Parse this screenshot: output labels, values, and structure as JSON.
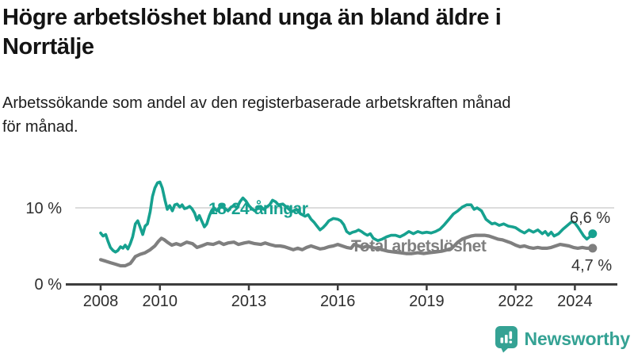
{
  "header": {
    "title": "Högre arbetslöshet bland unga än bland äldre i Norrtälje",
    "title_lines": [
      "Högre arbetslöshet bland unga än bland äldre i",
      "Norrtälje"
    ],
    "subtitle": "Arbetssökande som andel av den registerbaserade arbetskraften månad för månad.",
    "subtitle_lines": [
      "Arbetssökande som andel av den registerbaserade arbetskraften månad",
      "för månad."
    ]
  },
  "colors": {
    "youth_line": "#16a18f",
    "total_line": "#7f7f7f",
    "axis": "#3d3d3d",
    "grid": "#d0d0d0",
    "tick_text": "#2e2e2e",
    "brand_teal": "#35a294"
  },
  "chart_data": {
    "type": "line",
    "unit": "%",
    "x_axis": {
      "ticks": [
        2008,
        2010,
        2013,
        2016,
        2019,
        2022,
        2024
      ],
      "range": [
        2008,
        2024.7
      ]
    },
    "y_axis": {
      "ticks": [
        {
          "value": 0,
          "label": "0 %"
        },
        {
          "value": 10,
          "label": "10 %"
        }
      ],
      "range": [
        0,
        14.8
      ]
    },
    "grid": "y-10-only",
    "series": [
      {
        "name": "18-24-åringar",
        "color": "#16a18f",
        "end_value": 6.6,
        "end_label": "6,6 %",
        "points": [
          [
            2008.0,
            6.7
          ],
          [
            2008.08,
            6.3
          ],
          [
            2008.17,
            6.5
          ],
          [
            2008.25,
            5.6
          ],
          [
            2008.33,
            4.8
          ],
          [
            2008.42,
            4.4
          ],
          [
            2008.5,
            4.2
          ],
          [
            2008.58,
            4.4
          ],
          [
            2008.67,
            4.9
          ],
          [
            2008.75,
            4.7
          ],
          [
            2008.83,
            5.1
          ],
          [
            2008.92,
            4.6
          ],
          [
            2009.0,
            5.3
          ],
          [
            2009.08,
            6.2
          ],
          [
            2009.17,
            7.9
          ],
          [
            2009.25,
            8.3
          ],
          [
            2009.33,
            7.5
          ],
          [
            2009.42,
            6.5
          ],
          [
            2009.5,
            7.6
          ],
          [
            2009.58,
            7.9
          ],
          [
            2009.67,
            9.5
          ],
          [
            2009.75,
            11.5
          ],
          [
            2009.83,
            12.6
          ],
          [
            2009.92,
            13.3
          ],
          [
            2010.0,
            13.4
          ],
          [
            2010.08,
            12.6
          ],
          [
            2010.17,
            11.0
          ],
          [
            2010.25,
            9.8
          ],
          [
            2010.33,
            10.3
          ],
          [
            2010.42,
            9.6
          ],
          [
            2010.5,
            10.4
          ],
          [
            2010.58,
            10.5
          ],
          [
            2010.67,
            10.1
          ],
          [
            2010.75,
            10.4
          ],
          [
            2010.83,
            9.9
          ],
          [
            2010.92,
            10.0
          ],
          [
            2011.0,
            10.2
          ],
          [
            2011.08,
            9.9
          ],
          [
            2011.17,
            9.3
          ],
          [
            2011.25,
            8.4
          ],
          [
            2011.33,
            9.0
          ],
          [
            2011.42,
            8.2
          ],
          [
            2011.5,
            7.5
          ],
          [
            2011.58,
            7.9
          ],
          [
            2011.67,
            9.0
          ],
          [
            2011.75,
            9.7
          ],
          [
            2011.83,
            10.0
          ],
          [
            2011.92,
            9.6
          ],
          [
            2012.0,
            10.0
          ],
          [
            2012.1,
            10.4
          ],
          [
            2012.2,
            9.9
          ],
          [
            2012.3,
            9.6
          ],
          [
            2012.4,
            10.1
          ],
          [
            2012.5,
            10.3
          ],
          [
            2012.6,
            10.0
          ],
          [
            2012.7,
            10.8
          ],
          [
            2012.8,
            11.3
          ],
          [
            2012.9,
            10.9
          ],
          [
            2013.0,
            10.3
          ],
          [
            2013.1,
            9.9
          ],
          [
            2013.2,
            9.6
          ],
          [
            2013.3,
            10.0
          ],
          [
            2013.4,
            10.2
          ],
          [
            2013.5,
            9.8
          ],
          [
            2013.6,
            10.1
          ],
          [
            2013.7,
            10.4
          ],
          [
            2013.8,
            11.0
          ],
          [
            2013.9,
            10.8
          ],
          [
            2014.0,
            10.4
          ],
          [
            2014.15,
            10.5
          ],
          [
            2014.3,
            10.0
          ],
          [
            2014.45,
            9.5
          ],
          [
            2014.6,
            9.8
          ],
          [
            2014.75,
            9.2
          ],
          [
            2014.9,
            8.9
          ],
          [
            2015.0,
            9.1
          ],
          [
            2015.1,
            8.5
          ],
          [
            2015.2,
            8.1
          ],
          [
            2015.3,
            7.6
          ],
          [
            2015.4,
            7.1
          ],
          [
            2015.5,
            7.4
          ],
          [
            2015.6,
            7.8
          ],
          [
            2015.7,
            8.3
          ],
          [
            2015.85,
            8.6
          ],
          [
            2016.0,
            8.5
          ],
          [
            2016.1,
            8.3
          ],
          [
            2016.2,
            7.8
          ],
          [
            2016.3,
            6.9
          ],
          [
            2016.4,
            6.6
          ],
          [
            2016.5,
            6.8
          ],
          [
            2016.6,
            6.9
          ],
          [
            2016.7,
            7.1
          ],
          [
            2016.8,
            6.9
          ],
          [
            2016.9,
            6.6
          ],
          [
            2017.0,
            6.4
          ],
          [
            2017.1,
            6.6
          ],
          [
            2017.2,
            6.0
          ],
          [
            2017.35,
            5.7
          ],
          [
            2017.5,
            5.9
          ],
          [
            2017.65,
            6.2
          ],
          [
            2017.8,
            6.4
          ],
          [
            2017.95,
            6.4
          ],
          [
            2018.1,
            6.2
          ],
          [
            2018.25,
            6.5
          ],
          [
            2018.4,
            6.9
          ],
          [
            2018.55,
            6.6
          ],
          [
            2018.7,
            6.9
          ],
          [
            2018.85,
            6.7
          ],
          [
            2019.0,
            6.8
          ],
          [
            2019.15,
            6.7
          ],
          [
            2019.3,
            6.9
          ],
          [
            2019.45,
            7.2
          ],
          [
            2019.6,
            7.8
          ],
          [
            2019.75,
            8.5
          ],
          [
            2019.9,
            9.2
          ],
          [
            2020.05,
            9.6
          ],
          [
            2020.2,
            10.1
          ],
          [
            2020.35,
            10.4
          ],
          [
            2020.5,
            10.4
          ],
          [
            2020.6,
            9.8
          ],
          [
            2020.7,
            10.0
          ],
          [
            2020.85,
            9.6
          ],
          [
            2021.0,
            8.5
          ],
          [
            2021.1,
            8.2
          ],
          [
            2021.2,
            7.9
          ],
          [
            2021.3,
            8.0
          ],
          [
            2021.45,
            7.7
          ],
          [
            2021.6,
            7.9
          ],
          [
            2021.75,
            7.6
          ],
          [
            2021.9,
            7.5
          ],
          [
            2022.0,
            7.4
          ],
          [
            2022.15,
            7.0
          ],
          [
            2022.3,
            6.7
          ],
          [
            2022.45,
            7.1
          ],
          [
            2022.6,
            6.8
          ],
          [
            2022.75,
            7.1
          ],
          [
            2022.9,
            6.6
          ],
          [
            2023.0,
            6.9
          ],
          [
            2023.1,
            6.4
          ],
          [
            2023.2,
            6.8
          ],
          [
            2023.3,
            6.3
          ],
          [
            2023.45,
            6.6
          ],
          [
            2023.6,
            7.2
          ],
          [
            2023.75,
            7.7
          ],
          [
            2023.9,
            8.2
          ],
          [
            2024.0,
            8.0
          ],
          [
            2024.1,
            7.5
          ],
          [
            2024.2,
            6.9
          ],
          [
            2024.3,
            6.3
          ],
          [
            2024.4,
            5.9
          ],
          [
            2024.5,
            6.2
          ],
          [
            2024.6,
            6.6
          ]
        ]
      },
      {
        "name": "Total arbetslöshet",
        "color": "#7f7f7f",
        "end_value": 4.7,
        "end_label": "4,7 %",
        "points": [
          [
            2008.0,
            3.2
          ],
          [
            2008.17,
            3.0
          ],
          [
            2008.33,
            2.8
          ],
          [
            2008.5,
            2.6
          ],
          [
            2008.67,
            2.4
          ],
          [
            2008.83,
            2.4
          ],
          [
            2009.0,
            2.7
          ],
          [
            2009.08,
            3.1
          ],
          [
            2009.17,
            3.6
          ],
          [
            2009.33,
            3.9
          ],
          [
            2009.5,
            4.1
          ],
          [
            2009.67,
            4.5
          ],
          [
            2009.83,
            5.0
          ],
          [
            2009.95,
            5.6
          ],
          [
            2010.05,
            6.0
          ],
          [
            2010.15,
            5.8
          ],
          [
            2010.25,
            5.5
          ],
          [
            2010.4,
            5.1
          ],
          [
            2010.55,
            5.3
          ],
          [
            2010.7,
            5.1
          ],
          [
            2010.9,
            5.5
          ],
          [
            2011.1,
            5.3
          ],
          [
            2011.25,
            4.8
          ],
          [
            2011.4,
            5.0
          ],
          [
            2011.6,
            5.3
          ],
          [
            2011.8,
            5.2
          ],
          [
            2012.0,
            5.5
          ],
          [
            2012.15,
            5.2
          ],
          [
            2012.3,
            5.4
          ],
          [
            2012.5,
            5.5
          ],
          [
            2012.65,
            5.2
          ],
          [
            2012.85,
            5.4
          ],
          [
            2013.0,
            5.5
          ],
          [
            2013.2,
            5.3
          ],
          [
            2013.4,
            5.2
          ],
          [
            2013.55,
            5.4
          ],
          [
            2013.7,
            5.2
          ],
          [
            2013.9,
            5.0
          ],
          [
            2014.05,
            5.0
          ],
          [
            2014.2,
            4.9
          ],
          [
            2014.35,
            4.7
          ],
          [
            2014.5,
            4.5
          ],
          [
            2014.65,
            4.7
          ],
          [
            2014.8,
            4.5
          ],
          [
            2014.95,
            4.8
          ],
          [
            2015.1,
            5.0
          ],
          [
            2015.25,
            4.8
          ],
          [
            2015.4,
            4.6
          ],
          [
            2015.55,
            4.7
          ],
          [
            2015.7,
            4.9
          ],
          [
            2015.85,
            5.0
          ],
          [
            2016.0,
            5.2
          ],
          [
            2016.15,
            5.0
          ],
          [
            2016.3,
            4.8
          ],
          [
            2016.45,
            4.7
          ],
          [
            2016.55,
            5.2
          ],
          [
            2016.7,
            5.0
          ],
          [
            2016.85,
            4.8
          ],
          [
            2017.0,
            5.0
          ],
          [
            2017.15,
            4.8
          ],
          [
            2017.3,
            4.7
          ],
          [
            2017.5,
            4.5
          ],
          [
            2017.7,
            4.3
          ],
          [
            2017.9,
            4.2
          ],
          [
            2018.1,
            4.1
          ],
          [
            2018.3,
            4.0
          ],
          [
            2018.5,
            4.0
          ],
          [
            2018.7,
            4.1
          ],
          [
            2018.9,
            4.0
          ],
          [
            2019.1,
            4.1
          ],
          [
            2019.3,
            4.2
          ],
          [
            2019.5,
            4.3
          ],
          [
            2019.7,
            4.5
          ],
          [
            2019.85,
            4.7
          ],
          [
            2020.05,
            5.5
          ],
          [
            2020.2,
            5.9
          ],
          [
            2020.35,
            6.1
          ],
          [
            2020.5,
            6.3
          ],
          [
            2020.65,
            6.4
          ],
          [
            2020.8,
            6.4
          ],
          [
            2020.95,
            6.4
          ],
          [
            2021.1,
            6.3
          ],
          [
            2021.25,
            6.1
          ],
          [
            2021.4,
            5.9
          ],
          [
            2021.55,
            5.8
          ],
          [
            2021.7,
            5.6
          ],
          [
            2021.85,
            5.4
          ],
          [
            2022.0,
            5.1
          ],
          [
            2022.15,
            4.9
          ],
          [
            2022.3,
            5.0
          ],
          [
            2022.45,
            4.8
          ],
          [
            2022.6,
            4.7
          ],
          [
            2022.75,
            4.8
          ],
          [
            2022.9,
            4.7
          ],
          [
            2023.05,
            4.7
          ],
          [
            2023.2,
            4.8
          ],
          [
            2023.35,
            5.0
          ],
          [
            2023.5,
            5.2
          ],
          [
            2023.65,
            5.1
          ],
          [
            2023.8,
            5.0
          ],
          [
            2023.95,
            4.8
          ],
          [
            2024.1,
            4.7
          ],
          [
            2024.25,
            4.8
          ],
          [
            2024.4,
            4.7
          ],
          [
            2024.6,
            4.7
          ]
        ]
      }
    ]
  },
  "footer": {
    "brand": "Newsworthy"
  }
}
